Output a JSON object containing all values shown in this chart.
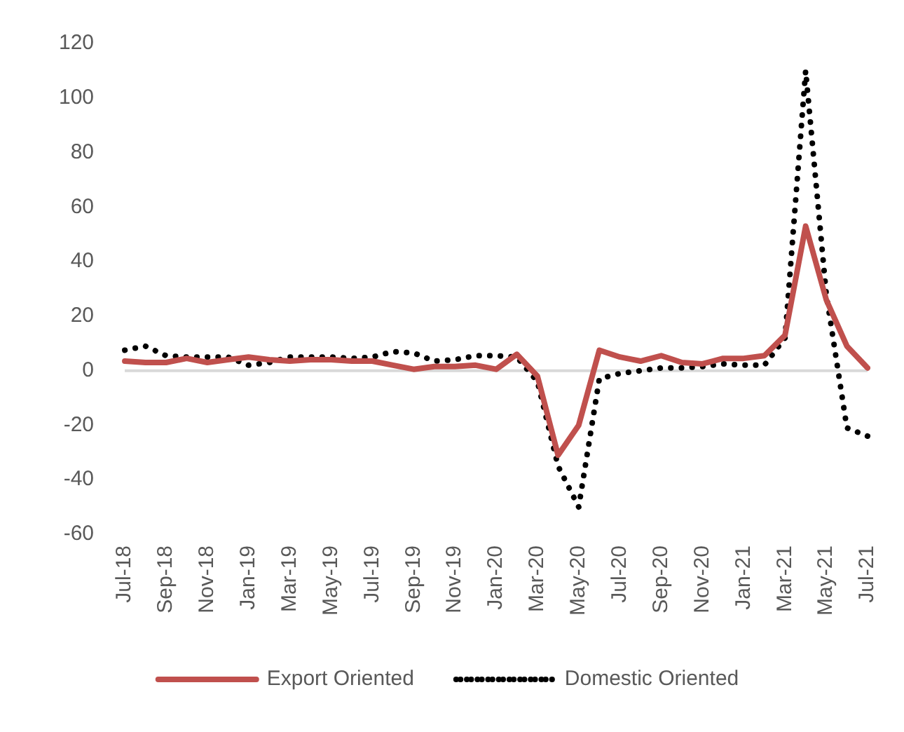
{
  "chart_data": {
    "type": "line",
    "categories": [
      "Jul-18",
      null,
      "Sep-18",
      null,
      "Nov-18",
      null,
      "Jan-19",
      null,
      "Mar-19",
      null,
      "May-19",
      null,
      "Jul-19",
      null,
      "Sep-19",
      null,
      "Nov-19",
      null,
      "Jan-20",
      null,
      "Mar-20",
      null,
      "May-20",
      null,
      "Jul-20",
      null,
      "Sep-20",
      null,
      "Nov-20",
      null,
      "Jan-21",
      null,
      "Mar-21",
      null,
      "May-21",
      null,
      "Jul-21"
    ],
    "series": [
      {
        "name": "Export Oriented",
        "color": "#c0504d",
        "line_style": "solid",
        "values": [
          3.5,
          3,
          3,
          4.5,
          3,
          4,
          5,
          4,
          3.5,
          4,
          4,
          3.5,
          3.5,
          2,
          0.5,
          1.5,
          1.5,
          2,
          0.5,
          6,
          -2,
          -31,
          -20,
          7.5,
          5,
          3.5,
          5.5,
          3,
          2.5,
          4.5,
          4.5,
          5.5,
          13,
          53,
          26,
          9,
          1
        ]
      },
      {
        "name": "Domestic Oriented",
        "color": "#000000",
        "line_style": "dotted",
        "values": [
          7.5,
          9,
          5.5,
          5,
          5,
          5,
          2,
          3,
          5,
          5,
          5,
          4.5,
          5,
          7,
          6.5,
          3.5,
          4,
          5.5,
          5.5,
          5,
          -4,
          -35,
          -50,
          -3,
          -1,
          0,
          1,
          1,
          1.5,
          2.5,
          2,
          2,
          12,
          110,
          28,
          -21,
          -24
        ]
      }
    ],
    "ylim": [
      -60,
      120
    ],
    "yticks": [
      -60,
      -40,
      -20,
      0,
      20,
      40,
      60,
      80,
      100,
      120
    ],
    "grid": false,
    "ref_lines": [
      {
        "axis": "y",
        "value": 0,
        "color": "#d9d9d9"
      }
    ],
    "legend": "bottom",
    "marker": "none"
  }
}
